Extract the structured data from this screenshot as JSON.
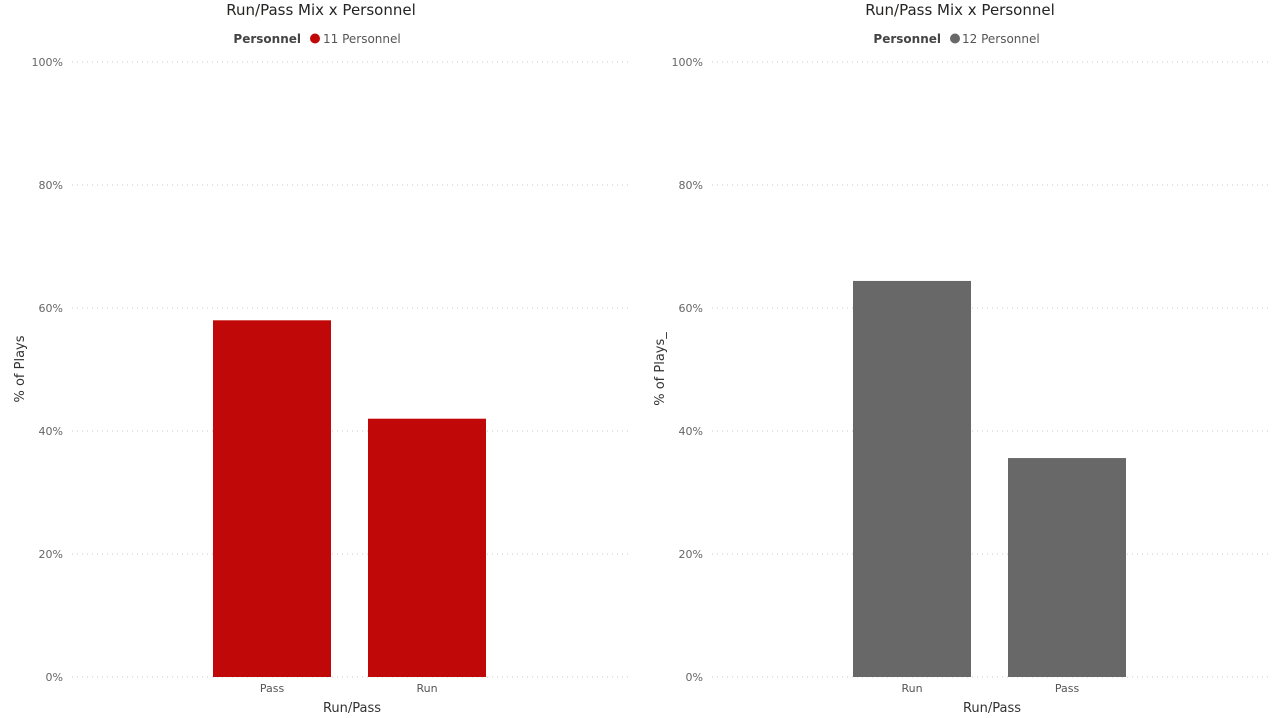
{
  "chart_data": [
    {
      "type": "bar",
      "title": "Run/Pass Mix x Personnel",
      "legend_title": "Personnel",
      "legend_placement": "top-center",
      "series": [
        {
          "name": "11 Personnel",
          "values": [
            58,
            42
          ]
        }
      ],
      "categories": [
        "Pass",
        "Run"
      ],
      "xlabel": "Run/Pass",
      "ylabel": "% of Plays",
      "ylim": [
        0,
        100
      ],
      "yticks": [
        "0%",
        "20%",
        "40%",
        "60%",
        "80%",
        "100%"
      ],
      "color": "#c00808",
      "grid": true
    },
    {
      "type": "bar",
      "title": "Run/Pass Mix x Personnel",
      "legend_title": "Personnel",
      "legend_placement": "top-center",
      "series": [
        {
          "name": "12 Personnel",
          "values": [
            64.4,
            35.6
          ]
        }
      ],
      "categories": [
        "Run",
        "Pass"
      ],
      "xlabel": "Run/Pass",
      "ylabel": "% of Plays_",
      "ylim": [
        0,
        100
      ],
      "yticks": [
        "0%",
        "20%",
        "40%",
        "60%",
        "80%",
        "100%"
      ],
      "color": "#686868",
      "grid": true
    }
  ]
}
